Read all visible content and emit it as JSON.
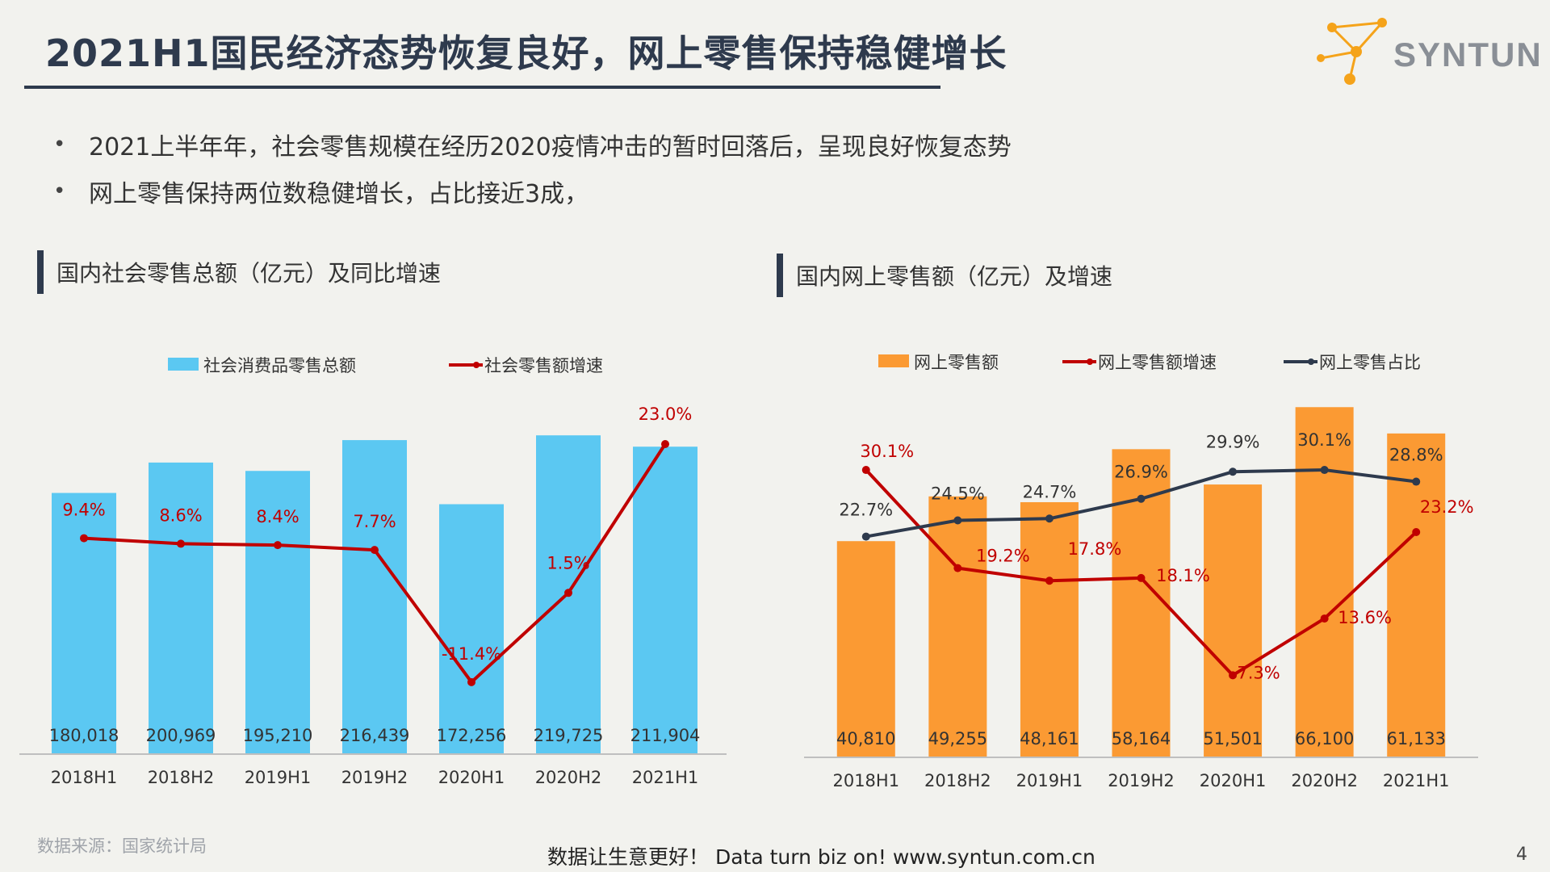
{
  "header": {
    "title": "2021H1国民经济态势恢复良好，网上零售保持稳健增长",
    "logo_text": "SYNTUN"
  },
  "bullets": [
    "2021上半年年，社会零售规模在经历2020疫情冲击的暂时回落后，呈现良好恢复态势",
    "网上零售保持两位数稳健增长，占比接近3成，"
  ],
  "bullet_marker": "•",
  "colors": {
    "title": "#2e3a4d",
    "retail_bar": "#5bc8f2",
    "online_bar": "#fb9a33",
    "growth_line": "#c00000",
    "share_line": "#2e3a4d"
  },
  "chart_titles": {
    "left": "国内社会零售总额（亿元）及同比增速",
    "right": "国内网上零售额（亿元）及增速"
  },
  "chart_data": [
    {
      "type": "bar",
      "categories": [
        "2018H1",
        "2018H2",
        "2019H1",
        "2019H2",
        "2020H1",
        "2020H2",
        "2021H1"
      ],
      "series": [
        {
          "name": "社会消费品零售总额",
          "type": "bar",
          "axis": "left",
          "values": [
            180018,
            200969,
            195210,
            216439,
            172256,
            219725,
            211904
          ],
          "labels": [
            "180,018",
            "200,969",
            "195,210",
            "216,439",
            "172,256",
            "219,725",
            "211,904"
          ]
        },
        {
          "name": "社会零售额增速",
          "type": "line",
          "axis": "right",
          "values": [
            9.4,
            8.6,
            8.4,
            7.7,
            -11.4,
            1.5,
            23.0
          ],
          "labels": [
            "9.4%",
            "8.6%",
            "8.4%",
            "7.7%",
            "-11.4%",
            "1.5%",
            "23.0%"
          ]
        }
      ],
      "legend": "top"
    },
    {
      "type": "bar",
      "categories": [
        "2018H1",
        "2018H2",
        "2019H1",
        "2019H2",
        "2020H1",
        "2020H2",
        "2021H1"
      ],
      "series": [
        {
          "name": "网上零售额",
          "type": "bar",
          "axis": "left",
          "values": [
            40810,
            49255,
            48161,
            58164,
            51501,
            66100,
            61133
          ],
          "labels": [
            "40,810",
            "49,255",
            "48,161",
            "58,164",
            "51,501",
            "66,100",
            "61,133"
          ]
        },
        {
          "name": "网上零售额增速",
          "type": "line",
          "axis": "right",
          "values": [
            30.1,
            19.2,
            17.8,
            18.1,
            7.3,
            13.6,
            23.2
          ],
          "labels": [
            "30.1%",
            "19.2%",
            "17.8%",
            "18.1%",
            "7.3%",
            "13.6%",
            "23.2%"
          ]
        },
        {
          "name": "网上零售占比",
          "type": "line",
          "axis": "right",
          "values": [
            22.7,
            24.5,
            24.7,
            26.9,
            29.9,
            30.1,
            28.8
          ],
          "labels": [
            "22.7%",
            "24.5%",
            "24.7%",
            "26.9%",
            "29.9%",
            "30.1%",
            "28.8%"
          ]
        }
      ],
      "legend": "top"
    }
  ],
  "source": "数据来源：国家统计局",
  "footer": "数据让生意更好！ Data turn biz on!  www.syntun.com.cn",
  "page_number": "4"
}
